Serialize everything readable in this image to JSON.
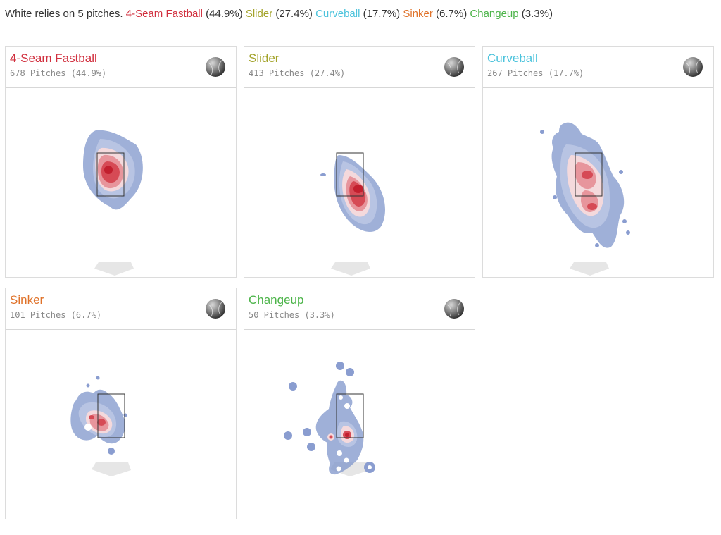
{
  "summary": {
    "intro": "White relies on 5 pitches.",
    "items": [
      {
        "name": "4-Seam Fastball",
        "pct": "(44.9%)",
        "color": "#d12f3e"
      },
      {
        "name": "Slider",
        "pct": "(27.4%)",
        "color": "#a3a32a"
      },
      {
        "name": "Curveball",
        "pct": "(17.7%)",
        "color": "#4cc3dc"
      },
      {
        "name": "Sinker",
        "pct": "(6.7%)",
        "color": "#e0732b"
      },
      {
        "name": "Changeup",
        "pct": "(3.3%)",
        "color": "#4cb449"
      }
    ]
  },
  "chart_data": [
    {
      "type": "heatmap",
      "title": "4-Seam Fastball",
      "subtitle": "678 Pitches (44.9%)",
      "pitches": 678,
      "share_pct": 44.9,
      "color": "#d12f3e",
      "icon": "baseball-icon"
    },
    {
      "type": "heatmap",
      "title": "Slider",
      "subtitle": "413 Pitches (27.4%)",
      "pitches": 413,
      "share_pct": 27.4,
      "color": "#a3a32a",
      "icon": "baseball-icon"
    },
    {
      "type": "heatmap",
      "title": "Curveball",
      "subtitle": "267 Pitches (17.7%)",
      "pitches": 267,
      "share_pct": 17.7,
      "color": "#4cc3dc",
      "icon": "baseball-icon"
    },
    {
      "type": "heatmap",
      "title": "Sinker",
      "subtitle": "101 Pitches (6.7%)",
      "pitches": 101,
      "share_pct": 6.7,
      "color": "#e0732b",
      "icon": "baseball-icon"
    },
    {
      "type": "heatmap",
      "title": "Changeup",
      "subtitle": "50 Pitches (3.3%)",
      "pitches": 50,
      "share_pct": 3.3,
      "color": "#4cb449",
      "icon": "baseball-icon"
    }
  ]
}
